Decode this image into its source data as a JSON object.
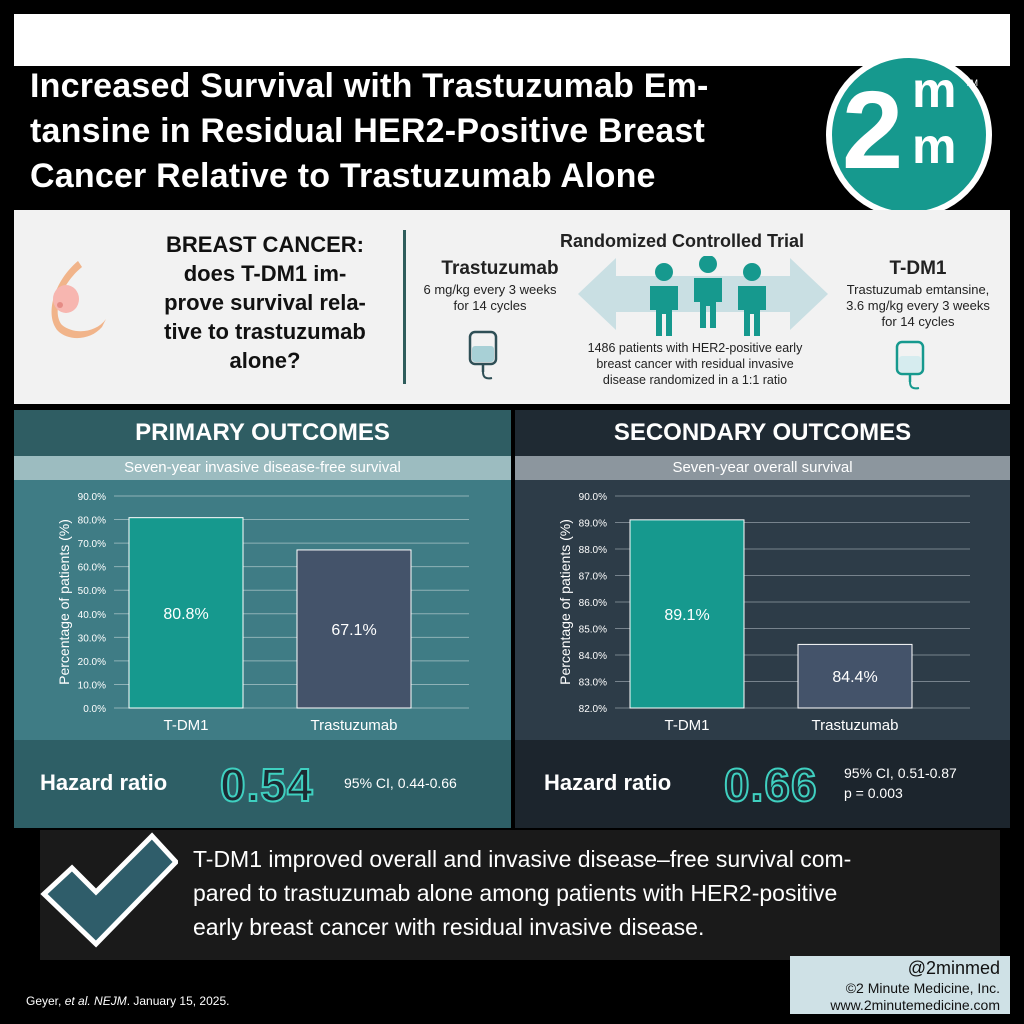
{
  "title": "Increased Survival with Trastuzumab Em-tansine in Residual HER2-Positive Breast Cancer Relative to Trastuzumab Alone",
  "title_lines": [
    "Increased Survival with Trastuzumab Em-",
    "tansine in Residual HER2-Positive Breast",
    "Cancer Relative to Trastuzumab Alone"
  ],
  "logo": {
    "digit": "2",
    "m_top": "m",
    "m_bottom": "m",
    "tm": "TM"
  },
  "question": {
    "lines": [
      "BREAST CANCER:",
      "does T-DM1 im-",
      "prove survival rela-",
      "tive to trastuzumab",
      "alone?"
    ]
  },
  "trial": {
    "title": "Randomized Controlled Trial",
    "arm1": {
      "name": "Trastuzumab",
      "dose_lines": [
        "6 mg/kg every 3 weeks",
        "for 14 cycles"
      ]
    },
    "arm2": {
      "name": "T-DM1",
      "dose_lines": [
        "Trastuzumab emtansine,",
        "3.6 mg/kg every 3 weeks",
        "for 14 cycles"
      ]
    },
    "patients_lines": [
      "1486 patients with HER2-positive early",
      "breast cancer with residual invasive",
      "disease randomized in a 1:1 ratio"
    ]
  },
  "primary": {
    "title": "PRIMARY OUTCOMES",
    "subtitle": "Seven-year invasive disease-free survival",
    "hr_label": "Hazard ratio",
    "hr_value": "0.54",
    "ci": "95% CI, 0.44-0.66"
  },
  "secondary": {
    "title": "SECONDARY OUTCOMES",
    "subtitle": "Seven-year overall survival",
    "hr_label": "Hazard ratio",
    "hr_value": "0.66",
    "ci": "95% CI, 0.51-0.87",
    "p": "p = 0.003"
  },
  "chart_data": [
    {
      "type": "bar",
      "title": "Seven-year invasive disease-free survival",
      "categories": [
        "T-DM1",
        "Trastuzumab"
      ],
      "values": [
        80.8,
        67.1
      ],
      "value_labels": [
        "80.8%",
        "67.1%"
      ],
      "ylabel": "Percentage of patients (%)",
      "xlabel": "",
      "ylim": [
        0,
        90
      ],
      "yticks": [
        0,
        10,
        20,
        30,
        40,
        50,
        60,
        70,
        80,
        90
      ],
      "ytick_labels": [
        "0.0%",
        "10.0%",
        "20.0%",
        "30.0%",
        "40.0%",
        "50.0%",
        "60.0%",
        "70.0%",
        "80.0%",
        "90.0%"
      ],
      "bar_colors": [
        "#16998e",
        "#44536a"
      ],
      "grid": true
    },
    {
      "type": "bar",
      "title": "Seven-year overall survival",
      "categories": [
        "T-DM1",
        "Trastuzumab"
      ],
      "values": [
        89.1,
        84.4
      ],
      "value_labels": [
        "89.1%",
        "84.4%"
      ],
      "ylabel": "Percentage of patients (%)",
      "xlabel": "",
      "ylim": [
        82,
        90
      ],
      "yticks": [
        82,
        83,
        84,
        85,
        86,
        87,
        88,
        89,
        90
      ],
      "ytick_labels": [
        "82.0%",
        "83.0%",
        "84.0%",
        "85.0%",
        "86.0%",
        "87.0%",
        "88.0%",
        "89.0%",
        "90.0%"
      ],
      "bar_colors": [
        "#16998e",
        "#44536a"
      ],
      "grid": true
    }
  ],
  "conclusion_lines": [
    "T-DM1 improved overall and invasive disease–free survival com-",
    "pared to trastuzumab alone among patients with HER2-positive",
    "early breast cancer with residual invasive disease."
  ],
  "citation": {
    "authors": "Geyer, ",
    "etal": "et al.",
    "journal": "NEJM",
    "date": ". January 15, 2025."
  },
  "credit": {
    "handle": "@2minmed",
    "copyright": "©2 Minute Medicine, Inc.",
    "url": "www.2minutemedicine.com"
  },
  "colors": {
    "teal": "#16998e",
    "slate": "#44536a",
    "dark_teal": "#2f5d63"
  }
}
